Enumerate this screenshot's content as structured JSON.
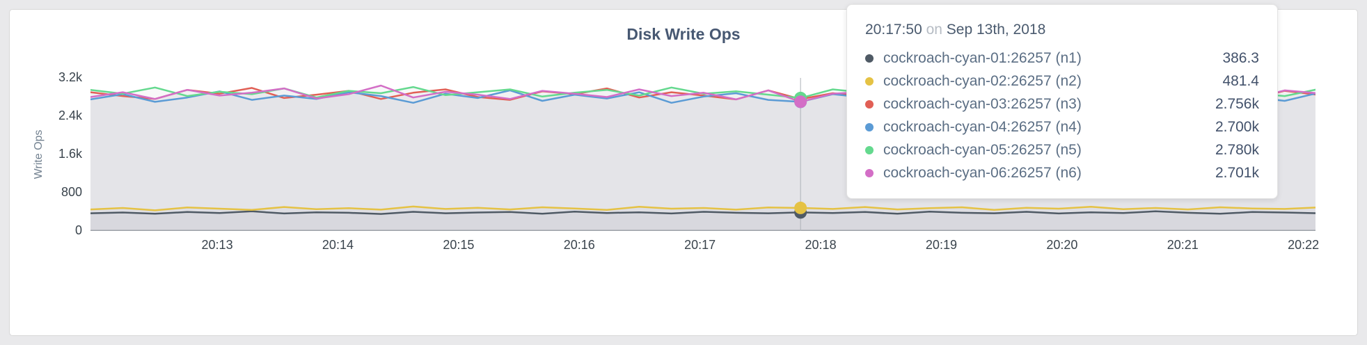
{
  "chart_data": {
    "type": "line",
    "title": "Disk Write Ops",
    "ylabel": "Write Ops",
    "ylim": [
      0,
      3200
    ],
    "y_ticks": [
      {
        "v": 0,
        "label": "0"
      },
      {
        "v": 800,
        "label": "800"
      },
      {
        "v": 1600,
        "label": "1.6k"
      },
      {
        "v": 2400,
        "label": "2.4k"
      },
      {
        "v": 3200,
        "label": "3.2k"
      }
    ],
    "x_ticks": [
      {
        "t": 13,
        "label": "20:13"
      },
      {
        "t": 14,
        "label": "20:14"
      },
      {
        "t": 15,
        "label": "20:15"
      },
      {
        "t": 16,
        "label": "20:16"
      },
      {
        "t": 17,
        "label": "20:17"
      },
      {
        "t": 18,
        "label": "20:18"
      },
      {
        "t": 19,
        "label": "20:19"
      },
      {
        "t": 20,
        "label": "20:20"
      },
      {
        "t": 21,
        "label": "20:21"
      },
      {
        "t": 22,
        "label": "20:22"
      }
    ],
    "x_domain": [
      11.95,
      22.1
    ],
    "x_start": 11.95,
    "x_step": 0.26742,
    "hover_index": 22,
    "area_fill": "rgba(122,128,140,0.055)",
    "guideline_color": "#adb2b8",
    "axis_line_color": "#9ba1a7",
    "series": [
      {
        "name": "cockroach-cyan-01:26257 (n1)",
        "color": "#4f5a65",
        "values": [
          370,
          385,
          360,
          395,
          375,
          410,
          365,
          390,
          380,
          355,
          400,
          370,
          385,
          395,
          360,
          405,
          375,
          390,
          365,
          400,
          380,
          370,
          386.3,
          375,
          395,
          360,
          405,
          380,
          370,
          400,
          365,
          390,
          375,
          410,
          380,
          360,
          395,
          385,
          370,
          390
        ]
      },
      {
        "name": "cockroach-cyan-02:26257 (n2)",
        "color": "#e5c244",
        "values": [
          450,
          480,
          430,
          490,
          465,
          440,
          500,
          455,
          475,
          445,
          510,
          460,
          485,
          450,
          495,
          470,
          440,
          505,
          465,
          480,
          445,
          490,
          481.4,
          460,
          500,
          450,
          475,
          495,
          440,
          485,
          465,
          505,
          455,
          480,
          450,
          495,
          470,
          460,
          490,
          475
        ]
      },
      {
        "name": "cockroach-cyan-03:26257 (n3)",
        "color": "#e15f55",
        "values": [
          2900,
          2820,
          2760,
          2950,
          2870,
          2990,
          2780,
          2850,
          2930,
          2760,
          2890,
          2960,
          2800,
          2740,
          2920,
          2860,
          2980,
          2790,
          2900,
          2830,
          2750,
          2940,
          2756,
          2880,
          2810,
          2960,
          2730,
          2870,
          2950,
          2780,
          2900,
          2840,
          2770,
          3010,
          2820,
          2890,
          2760,
          2930,
          2850,
          2780
        ]
      },
      {
        "name": "cockroach-cyan-04:26257 (n4)",
        "color": "#5b9bd5",
        "values": [
          2750,
          2860,
          2700,
          2790,
          2920,
          2740,
          2830,
          2760,
          2900,
          2820,
          2680,
          2870,
          2780,
          2940,
          2720,
          2850,
          2770,
          2900,
          2680,
          2810,
          2880,
          2740,
          2700,
          2860,
          2790,
          2700,
          2920,
          2770,
          2840,
          2710,
          2890,
          2760,
          2930,
          2780,
          2690,
          2850,
          2800,
          2720,
          2880,
          2810
        ]
      },
      {
        "name": "cockroach-cyan-05:26257 (n5)",
        "color": "#64d98e",
        "values": [
          2950,
          2870,
          3000,
          2820,
          2910,
          2860,
          2980,
          2790,
          2930,
          2880,
          3010,
          2840,
          2900,
          2960,
          2810,
          2890,
          2950,
          2830,
          3000,
          2870,
          2920,
          2850,
          2780,
          2960,
          2890,
          2940,
          2820,
          2980,
          2860,
          2910,
          2840,
          2990,
          2870,
          2930,
          2800,
          2950,
          2880,
          2820,
          2960,
          2900
        ]
      },
      {
        "name": "cockroach-cyan-06:26257 (n6)",
        "color": "#d36ec6",
        "values": [
          2800,
          2900,
          2760,
          2950,
          2830,
          2890,
          2980,
          2770,
          2860,
          3040,
          2790,
          2910,
          2850,
          2760,
          2930,
          2870,
          2800,
          2960,
          2820,
          2890,
          2750,
          2940,
          2701,
          2870,
          2910,
          2780,
          2950,
          2830,
          2890,
          2960,
          2780,
          2850,
          3020,
          2790,
          2900,
          2860,
          2770,
          2940,
          2880,
          2810
        ]
      }
    ]
  },
  "tooltip": {
    "time": "20:17:50",
    "conjunction": "on",
    "date": "Sep 13th, 2018",
    "rows": [
      {
        "name": "cockroach-cyan-01:26257 (n1)",
        "value": "386.3",
        "color": "#4f5a65"
      },
      {
        "name": "cockroach-cyan-02:26257 (n2)",
        "value": "481.4",
        "color": "#e5c244"
      },
      {
        "name": "cockroach-cyan-03:26257 (n3)",
        "value": "2.756k",
        "color": "#e15f55"
      },
      {
        "name": "cockroach-cyan-04:26257 (n4)",
        "value": "2.700k",
        "color": "#5b9bd5"
      },
      {
        "name": "cockroach-cyan-05:26257 (n5)",
        "value": "2.780k",
        "color": "#64d98e"
      },
      {
        "name": "cockroach-cyan-06:26257 (n6)",
        "value": "2.701k",
        "color": "#d36ec6"
      }
    ]
  }
}
